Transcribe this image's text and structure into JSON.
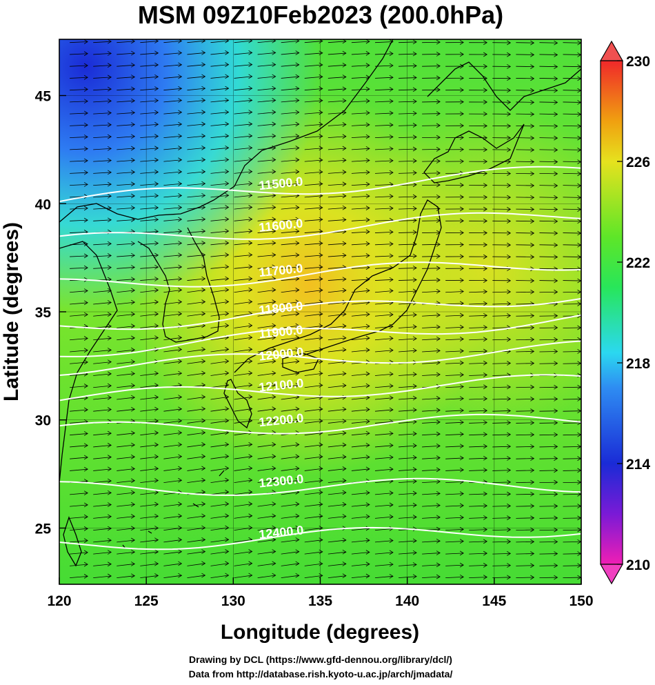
{
  "title": "MSM 09Z10Feb2023 (200.0hPa)",
  "map": {
    "lon_range": [
      120,
      150
    ],
    "lat_range": [
      22.4,
      47.6
    ],
    "x_ticks": [
      "120",
      "125",
      "130",
      "135",
      "140",
      "145",
      "150"
    ],
    "y_ticks": [
      "25",
      "30",
      "35",
      "40",
      "45"
    ],
    "xlabel": "Longitude (degrees)",
    "ylabel": "Latitude  (degrees)",
    "shading_field": "temperature",
    "colorbar": {
      "min": 210,
      "max": 230,
      "ticks": [
        "210",
        "214",
        "218",
        "222",
        "226",
        "230"
      ],
      "extend": "both"
    },
    "contour_levels": [
      {
        "label": "11500.0",
        "value": 11500,
        "lat_at_120": 40.1,
        "lat_at_150": 41.5
      },
      {
        "label": "11600.0",
        "value": 11600,
        "lat_at_120": 38.2,
        "lat_at_150": 39.5
      },
      {
        "label": "11700.0",
        "value": 11700,
        "lat_at_120": 36.2,
        "lat_at_150": 37.3
      },
      {
        "label": "11800.0",
        "value": 11800,
        "lat_at_120": 34.3,
        "lat_at_150": 35.8
      },
      {
        "label": "11900.0",
        "value": 11900,
        "lat_at_120": 33.2,
        "lat_at_150": 34.7
      },
      {
        "label": "12000.0",
        "value": 12000,
        "lat_at_120": 32.4,
        "lat_at_150": 33.3
      },
      {
        "label": "12100.0",
        "value": 12100,
        "lat_at_120": 31.0,
        "lat_at_150": 31.8
      },
      {
        "label": "12200.0",
        "value": 12200,
        "lat_at_120": 29.5,
        "lat_at_150": 30.0
      },
      {
        "label": "12300.0",
        "value": 12300,
        "lat_at_120": 26.8,
        "lat_at_150": 27.0
      },
      {
        "label": "12400.0",
        "value": 12400,
        "lat_at_120": 24.2,
        "lat_at_150": 25.0
      }
    ],
    "wind_vectors": "westerly",
    "colors": {
      "cold": "#1a2bd6",
      "cool": "#2bd8f0",
      "mid": "#38e628",
      "warm": "#e6e21e",
      "hot": "#f09a10",
      "max": "#f0282a",
      "min": "#f01eb4",
      "contour": "#ffffff",
      "vectors": "#000000"
    }
  },
  "credit": {
    "line1": "Drawing by DCL (https://www.gfd-dennou.org/library/dcl/)",
    "line2": "Data from http://database.rish.kyoto-u.ac.jp/arch/jmadata/"
  }
}
